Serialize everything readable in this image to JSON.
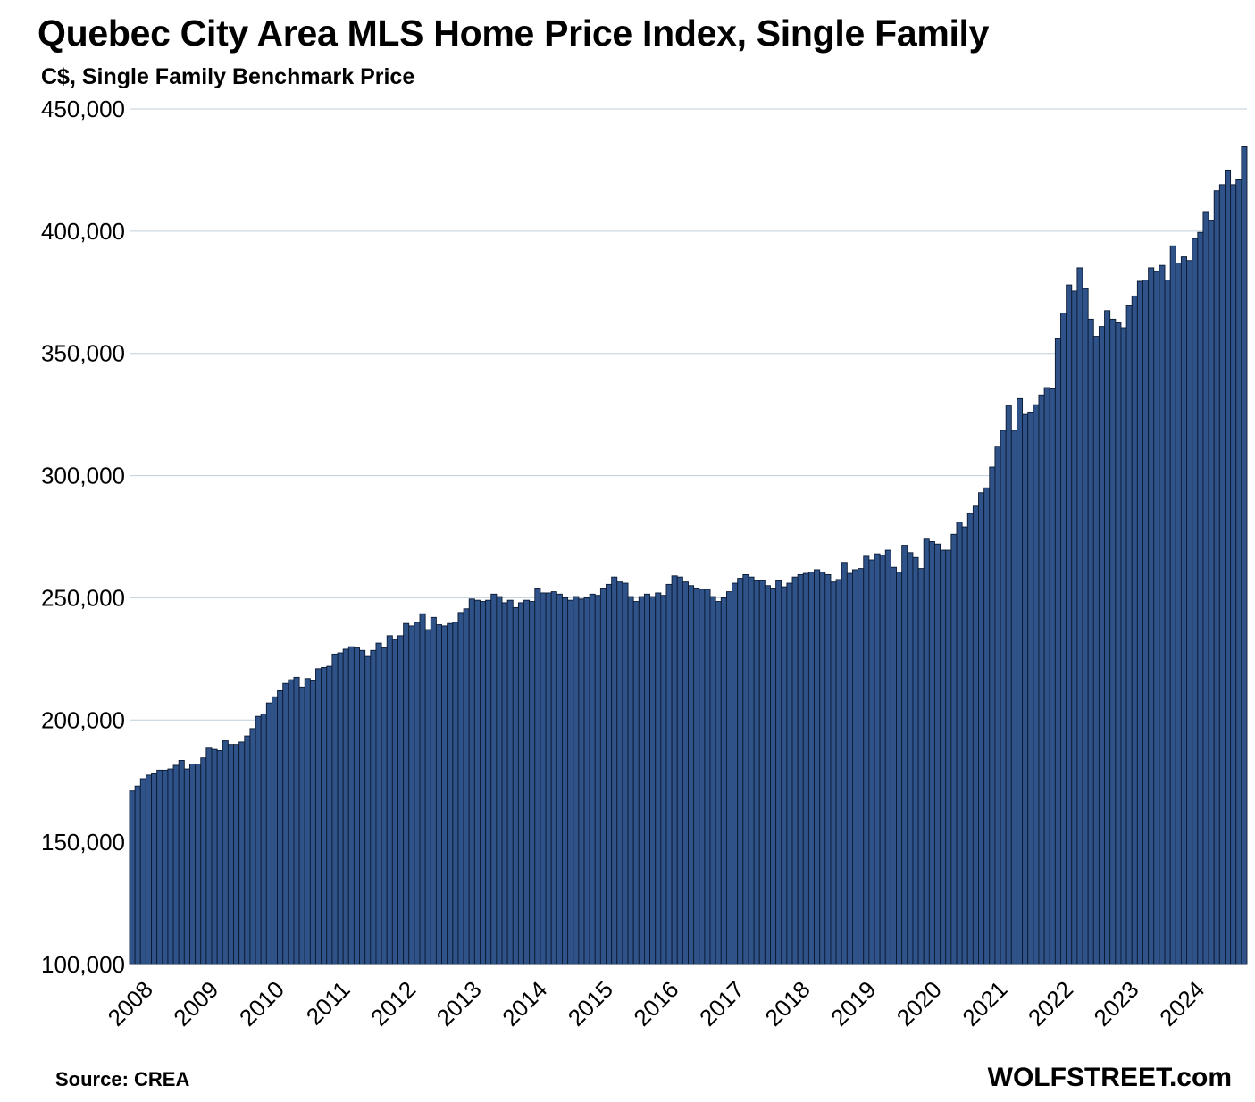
{
  "header": {
    "title": "Quebec City Area MLS Home Price Index, Single Family",
    "subtitle": "C$, Single Family Benchmark Price"
  },
  "footer": {
    "source": "Source: CREA",
    "brand": "WOLFSTREET.com"
  },
  "colors": {
    "bar_fill": "#2f5288",
    "bar_stroke": "#0b1a33",
    "gridline": "#bfcfd8",
    "text": "#000000"
  },
  "chart_data": {
    "type": "bar",
    "ylim": [
      100000,
      450000
    ],
    "yticks": [
      "100,000",
      "150,000",
      "200,000",
      "250,000",
      "300,000",
      "350,000",
      "400,000",
      "450,000"
    ],
    "ytick_values": [
      100000,
      150000,
      200000,
      250000,
      300000,
      350000,
      400000,
      450000
    ],
    "xtick_labels": [
      "2008",
      "2009",
      "2010",
      "2011",
      "2012",
      "2013",
      "2014",
      "2015",
      "2016",
      "2017",
      "2018",
      "2019",
      "2020",
      "2021",
      "2022",
      "2023",
      "2024"
    ],
    "start": "2008-01",
    "end": "2024-12",
    "grid": true,
    "legend": "none",
    "values": [
      171000,
      173000,
      176000,
      177500,
      178000,
      179500,
      179500,
      180000,
      181500,
      183500,
      180000,
      182000,
      182000,
      184500,
      188500,
      188000,
      187500,
      191500,
      190000,
      190000,
      191000,
      193500,
      196500,
      201500,
      202500,
      207000,
      209500,
      212000,
      215000,
      216500,
      217500,
      213500,
      217000,
      216000,
      221000,
      221500,
      222000,
      227000,
      227500,
      229000,
      230000,
      229500,
      228500,
      226000,
      228500,
      231500,
      229500,
      234500,
      233000,
      234500,
      239500,
      238500,
      240000,
      243500,
      237000,
      242000,
      239000,
      238500,
      239500,
      240000,
      244000,
      245500,
      249500,
      249000,
      248500,
      249000,
      251500,
      250500,
      248000,
      249000,
      246000,
      248000,
      249000,
      248500,
      254000,
      252000,
      252000,
      252500,
      251500,
      250000,
      249000,
      250500,
      249500,
      250000,
      251500,
      251000,
      254000,
      255500,
      258500,
      256500,
      256000,
      250500,
      248500,
      250500,
      251500,
      250500,
      252000,
      251000,
      255500,
      259000,
      258500,
      256500,
      255000,
      254000,
      253500,
      253500,
      250500,
      248500,
      250000,
      252500,
      256000,
      258000,
      259500,
      258500,
      257000,
      257000,
      255000,
      254000,
      257000,
      254500,
      256000,
      258500,
      259500,
      260000,
      260500,
      261500,
      260500,
      259500,
      256500,
      257500,
      264500,
      260000,
      261500,
      262000,
      267000,
      265500,
      268000,
      267500,
      269500,
      262500,
      260500,
      271500,
      268500,
      266500,
      262000,
      274000,
      273000,
      272000,
      269500,
      269500,
      276000,
      281000,
      279000,
      284500,
      287500,
      293000,
      295000,
      303500,
      312000,
      318500,
      328500,
      318500,
      331500,
      325000,
      326000,
      329000,
      333000,
      336000,
      335500,
      356000,
      366500,
      378000,
      375500,
      385000,
      376500,
      364000,
      357000,
      361000,
      367500,
      364000,
      362500,
      360500,
      369500,
      373500,
      379500,
      380000,
      385000,
      383500,
      386000,
      380000,
      394000,
      387000,
      389500,
      388000,
      397000,
      399500,
      408000,
      404500,
      416500,
      419000,
      425000,
      419000,
      421000,
      434500
    ]
  }
}
